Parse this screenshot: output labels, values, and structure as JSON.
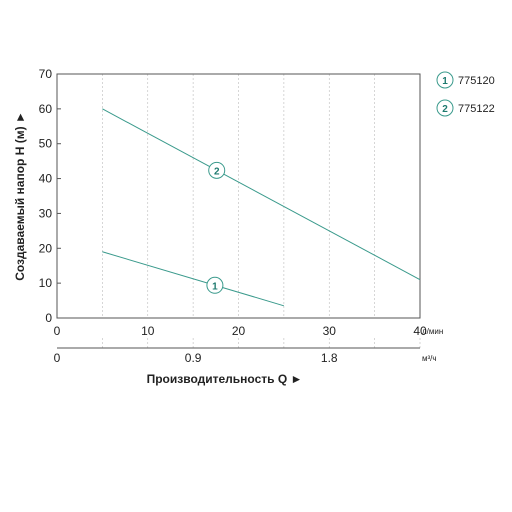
{
  "chart_data": {
    "type": "line",
    "ylabel": "Создаваемый напор Н (м) ►",
    "xlabel": "Производительность Q ►",
    "ylim": [
      0,
      70
    ],
    "xlim": [
      0,
      40
    ],
    "yticks": [
      "0",
      "10",
      "20",
      "30",
      "40",
      "50",
      "60",
      "70"
    ],
    "xticks_primary": [
      "0",
      "10",
      "20",
      "30",
      "40"
    ],
    "x_unit_primary": "л/мин",
    "xticks_secondary": [
      "0",
      "0.9",
      "1.8"
    ],
    "x_unit_secondary": "м³/ч",
    "grid": true,
    "legend_position": "top-right",
    "series": [
      {
        "name": "775120",
        "marker": "1",
        "color": "#3a9a8c",
        "x": [
          5,
          25
        ],
        "y": [
          19,
          3.5
        ]
      },
      {
        "name": "775122",
        "marker": "2",
        "color": "#3a9a8c",
        "x": [
          5,
          40
        ],
        "y": [
          60,
          11
        ]
      }
    ]
  }
}
